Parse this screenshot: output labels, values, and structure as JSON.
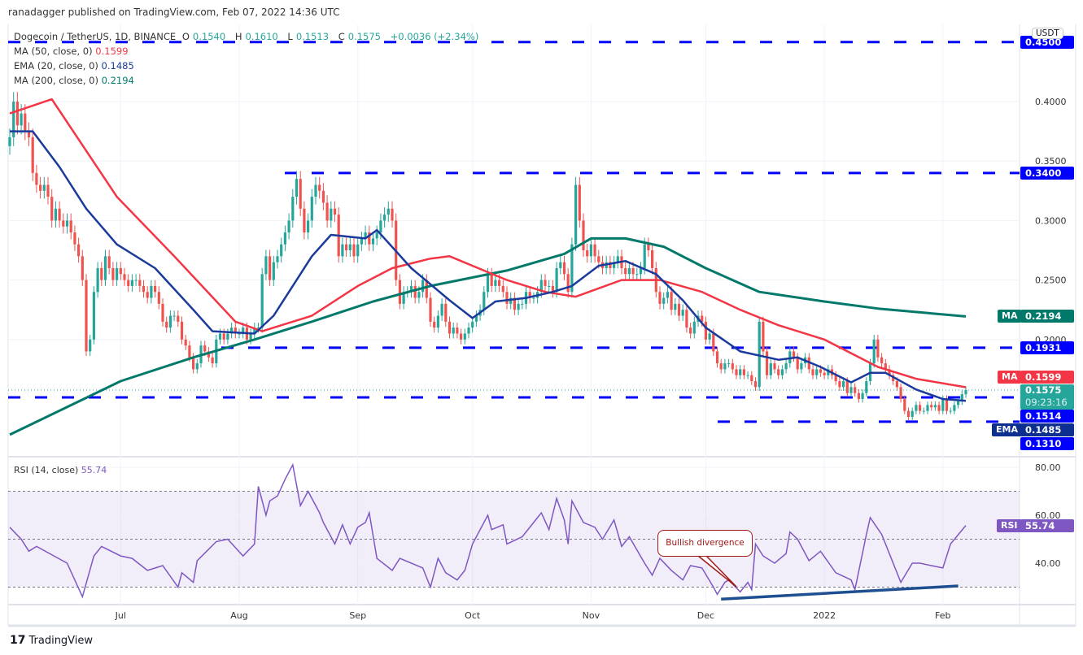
{
  "header": {
    "published": "ranadagger published on TradingView.com, Feb 07, 2022 14:36 UTC",
    "symbol": "Dogecoin / TetherUS, 1D, BINANCE",
    "o_label": "O",
    "o": "0.1540",
    "h_label": "H",
    "h": "0.1610",
    "l_label": "L",
    "l": "0.1513",
    "c_label": "C",
    "c": "0.1575",
    "change": "+0.0036 (+2.34%)"
  },
  "indicators": [
    {
      "name": "MA (50, close, 0)",
      "value": "0.1599",
      "color": "#f23645"
    },
    {
      "name": "EMA (20, close, 0)",
      "value": "0.1485",
      "color": "#1a3a9c"
    },
    {
      "name": "MA (200, close, 0)",
      "value": "0.2194",
      "color": "#00796b"
    }
  ],
  "price_axis": {
    "currency": "USDT",
    "ticks": [
      "0.4000",
      "0.3500",
      "0.3000",
      "0.2500",
      "0.2000"
    ]
  },
  "labels": {
    "l4500": "0.4500",
    "l3400": "0.3400",
    "ma200_tag": "MA",
    "ma200": "0.2194",
    "l1931": "0.1931",
    "ma50_tag": "MA",
    "ma50": "0.1599",
    "last": "0.1575",
    "countdown": "09:23:16",
    "l1514": "0.1514",
    "ema_tag": "EMA",
    "ema": "0.1485",
    "l1310": "0.1310",
    "rsi_tag": "RSI",
    "rsi": "55.74"
  },
  "rsi_legend": {
    "name": "RSI (14, close)",
    "value": "55.74"
  },
  "annotation": "Bullish divergence",
  "footer": {
    "logo": "TradingView"
  },
  "chart_data": {
    "type": "candlestick",
    "title": "Dogecoin / TetherUS, 1D, BINANCE",
    "start_date": "2021-06-02",
    "end_date": "2022-02-07",
    "closes": [
      0.37,
      0.4,
      0.38,
      0.39,
      0.375,
      0.37,
      0.34,
      0.33,
      0.325,
      0.33,
      0.32,
      0.3,
      0.31,
      0.3,
      0.295,
      0.3,
      0.29,
      0.28,
      0.27,
      0.25,
      0.19,
      0.2,
      0.24,
      0.26,
      0.25,
      0.27,
      0.26,
      0.25,
      0.26,
      0.255,
      0.25,
      0.245,
      0.25,
      0.25,
      0.245,
      0.24,
      0.235,
      0.245,
      0.24,
      0.23,
      0.215,
      0.21,
      0.22,
      0.22,
      0.215,
      0.2,
      0.195,
      0.185,
      0.175,
      0.18,
      0.195,
      0.19,
      0.185,
      0.18,
      0.2,
      0.205,
      0.2,
      0.205,
      0.21,
      0.205,
      0.205,
      0.21,
      0.2,
      0.205,
      0.21,
      0.21,
      0.255,
      0.27,
      0.25,
      0.265,
      0.27,
      0.28,
      0.29,
      0.3,
      0.32,
      0.335,
      0.31,
      0.29,
      0.3,
      0.32,
      0.33,
      0.325,
      0.315,
      0.3,
      0.31,
      0.305,
      0.27,
      0.28,
      0.275,
      0.28,
      0.27,
      0.28,
      0.285,
      0.29,
      0.28,
      0.285,
      0.29,
      0.3,
      0.305,
      0.31,
      0.3,
      0.25,
      0.23,
      0.24,
      0.24,
      0.245,
      0.235,
      0.24,
      0.25,
      0.235,
      0.215,
      0.21,
      0.22,
      0.23,
      0.215,
      0.205,
      0.21,
      0.205,
      0.2,
      0.205,
      0.21,
      0.215,
      0.22,
      0.225,
      0.24,
      0.255,
      0.245,
      0.25,
      0.245,
      0.24,
      0.23,
      0.235,
      0.225,
      0.23,
      0.23,
      0.24,
      0.235,
      0.235,
      0.24,
      0.25,
      0.245,
      0.245,
      0.24,
      0.26,
      0.265,
      0.255,
      0.24,
      0.28,
      0.33,
      0.3,
      0.275,
      0.27,
      0.28,
      0.27,
      0.265,
      0.26,
      0.265,
      0.26,
      0.265,
      0.27,
      0.26,
      0.255,
      0.26,
      0.255,
      0.255,
      0.26,
      0.28,
      0.275,
      0.26,
      0.24,
      0.23,
      0.235,
      0.24,
      0.225,
      0.23,
      0.22,
      0.225,
      0.21,
      0.205,
      0.215,
      0.22,
      0.215,
      0.2,
      0.205,
      0.19,
      0.18,
      0.175,
      0.18,
      0.18,
      0.175,
      0.17,
      0.175,
      0.17,
      0.17,
      0.165,
      0.16,
      0.215,
      0.19,
      0.17,
      0.18,
      0.175,
      0.17,
      0.175,
      0.18,
      0.19,
      0.185,
      0.175,
      0.18,
      0.185,
      0.175,
      0.17,
      0.175,
      0.172,
      0.17,
      0.175,
      0.17,
      0.165,
      0.16,
      0.165,
      0.155,
      0.16,
      0.155,
      0.15,
      0.155,
      0.165,
      0.18,
      0.2,
      0.185,
      0.18,
      0.175,
      0.17,
      0.165,
      0.16,
      0.15,
      0.14,
      0.135,
      0.14,
      0.145,
      0.14,
      0.14,
      0.145,
      0.143,
      0.145,
      0.14,
      0.15,
      0.14,
      0.14,
      0.145,
      0.148,
      0.154,
      0.1575
    ],
    "ma50": [
      [
        0,
        0.39
      ],
      [
        11,
        0.402
      ],
      [
        28,
        0.32
      ],
      [
        43,
        0.27
      ],
      [
        59,
        0.215
      ],
      [
        66,
        0.207
      ],
      [
        79,
        0.22
      ],
      [
        91,
        0.245
      ],
      [
        100,
        0.26
      ],
      [
        110,
        0.268
      ],
      [
        115,
        0.27
      ],
      [
        130,
        0.25
      ],
      [
        140,
        0.24
      ],
      [
        148,
        0.236
      ],
      [
        160,
        0.25
      ],
      [
        170,
        0.25
      ],
      [
        181,
        0.24
      ],
      [
        191,
        0.225
      ],
      [
        201,
        0.212
      ],
      [
        213,
        0.2
      ],
      [
        227,
        0.177
      ],
      [
        237,
        0.167
      ],
      [
        250,
        0.1599
      ]
    ],
    "ema20": [
      [
        0,
        0.375
      ],
      [
        6,
        0.375
      ],
      [
        13,
        0.345
      ],
      [
        20,
        0.31
      ],
      [
        28,
        0.28
      ],
      [
        38,
        0.26
      ],
      [
        48,
        0.225
      ],
      [
        53,
        0.207
      ],
      [
        64,
        0.205
      ],
      [
        69,
        0.22
      ],
      [
        79,
        0.27
      ],
      [
        84,
        0.288
      ],
      [
        93,
        0.285
      ],
      [
        96,
        0.292
      ],
      [
        105,
        0.26
      ],
      [
        115,
        0.233
      ],
      [
        121,
        0.218
      ],
      [
        127,
        0.232
      ],
      [
        135,
        0.235
      ],
      [
        142,
        0.24
      ],
      [
        147,
        0.245
      ],
      [
        154,
        0.262
      ],
      [
        161,
        0.266
      ],
      [
        169,
        0.255
      ],
      [
        176,
        0.233
      ],
      [
        182,
        0.21
      ],
      [
        191,
        0.19
      ],
      [
        201,
        0.183
      ],
      [
        206,
        0.185
      ],
      [
        212,
        0.177
      ],
      [
        220,
        0.164
      ],
      [
        225,
        0.172
      ],
      [
        229,
        0.172
      ],
      [
        237,
        0.158
      ],
      [
        244,
        0.15
      ],
      [
        250,
        0.1485
      ]
    ],
    "ma200": [
      [
        0,
        0.12
      ],
      [
        20,
        0.151
      ],
      [
        29,
        0.165
      ],
      [
        48,
        0.185
      ],
      [
        64,
        0.2
      ],
      [
        79,
        0.215
      ],
      [
        95,
        0.232
      ],
      [
        110,
        0.245
      ],
      [
        130,
        0.258
      ],
      [
        145,
        0.272
      ],
      [
        152,
        0.285
      ],
      [
        161,
        0.285
      ],
      [
        171,
        0.278
      ],
      [
        182,
        0.26
      ],
      [
        196,
        0.24
      ],
      [
        213,
        0.232
      ],
      [
        227,
        0.226
      ],
      [
        250,
        0.2194
      ]
    ],
    "levels": [
      0.45,
      0.34,
      0.1931,
      0.1514,
      0.131
    ],
    "rsi": [
      [
        0,
        55
      ],
      [
        3,
        50
      ],
      [
        5,
        45
      ],
      [
        7,
        47
      ],
      [
        15,
        40
      ],
      [
        19,
        26
      ],
      [
        22,
        43
      ],
      [
        24,
        47
      ],
      [
        29,
        43
      ],
      [
        32,
        42
      ],
      [
        36,
        37
      ],
      [
        40,
        39
      ],
      [
        44,
        30
      ],
      [
        45,
        36
      ],
      [
        48,
        32
      ],
      [
        49,
        41
      ],
      [
        54,
        49
      ],
      [
        57,
        50
      ],
      [
        61,
        43
      ],
      [
        64,
        48
      ],
      [
        65,
        72
      ],
      [
        67,
        60
      ],
      [
        68,
        66
      ],
      [
        70,
        68
      ],
      [
        72,
        75
      ],
      [
        74,
        81
      ],
      [
        76,
        64
      ],
      [
        78,
        70
      ],
      [
        81,
        61
      ],
      [
        82,
        57
      ],
      [
        85,
        48
      ],
      [
        87,
        56
      ],
      [
        89,
        48
      ],
      [
        91,
        55
      ],
      [
        93,
        57
      ],
      [
        94,
        61
      ],
      [
        96,
        42
      ],
      [
        100,
        37
      ],
      [
        102,
        42
      ],
      [
        105,
        40
      ],
      [
        108,
        38
      ],
      [
        110,
        30
      ],
      [
        112,
        42
      ],
      [
        114,
        36
      ],
      [
        117,
        33
      ],
      [
        119,
        37
      ],
      [
        121,
        48
      ],
      [
        125,
        60
      ],
      [
        126,
        54
      ],
      [
        129,
        56
      ],
      [
        130,
        48
      ],
      [
        134,
        51
      ],
      [
        137,
        57
      ],
      [
        139,
        61
      ],
      [
        141,
        54
      ],
      [
        143,
        67
      ],
      [
        145,
        58
      ],
      [
        146,
        48
      ],
      [
        147,
        66
      ],
      [
        150,
        57
      ],
      [
        153,
        55
      ],
      [
        155,
        50
      ],
      [
        158,
        58
      ],
      [
        160,
        47
      ],
      [
        162,
        51
      ],
      [
        166,
        40
      ],
      [
        168,
        35
      ],
      [
        170,
        42
      ],
      [
        173,
        37
      ],
      [
        176,
        33
      ],
      [
        178,
        39
      ],
      [
        181,
        38
      ],
      [
        184,
        30
      ],
      [
        185,
        27
      ],
      [
        187,
        32
      ],
      [
        188,
        33
      ],
      [
        191,
        28
      ],
      [
        193,
        32
      ],
      [
        194,
        29
      ],
      [
        195,
        48
      ],
      [
        197,
        43
      ],
      [
        200,
        40
      ],
      [
        203,
        44
      ],
      [
        204,
        53
      ],
      [
        206,
        50
      ],
      [
        209,
        41
      ],
      [
        212,
        45
      ],
      [
        216,
        36
      ],
      [
        220,
        33
      ],
      [
        221,
        29
      ],
      [
        224,
        52
      ],
      [
        225,
        59
      ],
      [
        228,
        52
      ],
      [
        230,
        44
      ],
      [
        233,
        32
      ],
      [
        236,
        40
      ],
      [
        238,
        40
      ],
      [
        241,
        39
      ],
      [
        244,
        38
      ],
      [
        246,
        48
      ],
      [
        250,
        55.74
      ]
    ],
    "rsi_levels": [
      70,
      50,
      30
    ],
    "rsi_ticks": [
      "80.00",
      "60.00",
      "40.00"
    ],
    "divergence_line": [
      [
        186,
        25
      ],
      [
        248,
        30.5
      ]
    ],
    "x_ticks": [
      {
        "label": "Jul",
        "i": 29
      },
      {
        "label": "Aug",
        "i": 60
      },
      {
        "label": "Sep",
        "i": 91
      },
      {
        "label": "Oct",
        "i": 121
      },
      {
        "label": "Nov",
        "i": 152
      },
      {
        "label": "Dec",
        "i": 182
      },
      {
        "label": "2022",
        "i": 213
      },
      {
        "label": "Feb",
        "i": 244
      }
    ],
    "colors": {
      "up": "#26a69a",
      "down": "#ef5350",
      "ma50": "#f23645",
      "ema20": "#1a3a9c",
      "ma200": "#00796b",
      "level": "#0000ff",
      "rsi": "#7e57c2"
    }
  }
}
